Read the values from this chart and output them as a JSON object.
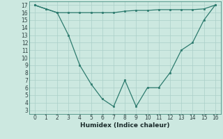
{
  "x": [
    0,
    1,
    2,
    3,
    4,
    5,
    6,
    7,
    8,
    9,
    10,
    11,
    12,
    13,
    14,
    15,
    16
  ],
  "line1": [
    17,
    16.5,
    16,
    16,
    16,
    16,
    16,
    16,
    16.2,
    16.3,
    16.3,
    16.4,
    16.4,
    16.4,
    16.4,
    16.5,
    17
  ],
  "line2": [
    17,
    16.5,
    16,
    13,
    9,
    6.5,
    4.5,
    3.5,
    7,
    3.5,
    6,
    6,
    8,
    11,
    12,
    15,
    17
  ],
  "line_color": "#2d7b6e",
  "bg_color": "#cce8e0",
  "grid_color": "#aacfc8",
  "xlabel": "Humidex (Indice chaleur)",
  "xlim": [
    -0.5,
    16.5
  ],
  "ylim": [
    2.5,
    17.5
  ],
  "yticks": [
    3,
    4,
    5,
    6,
    7,
    8,
    9,
    10,
    11,
    12,
    13,
    14,
    15,
    16,
    17
  ],
  "xticks": [
    0,
    1,
    2,
    3,
    4,
    5,
    6,
    7,
    8,
    9,
    10,
    11,
    12,
    13,
    14,
    15,
    16
  ],
  "tick_fontsize": 5.5,
  "xlabel_fontsize": 6.5
}
